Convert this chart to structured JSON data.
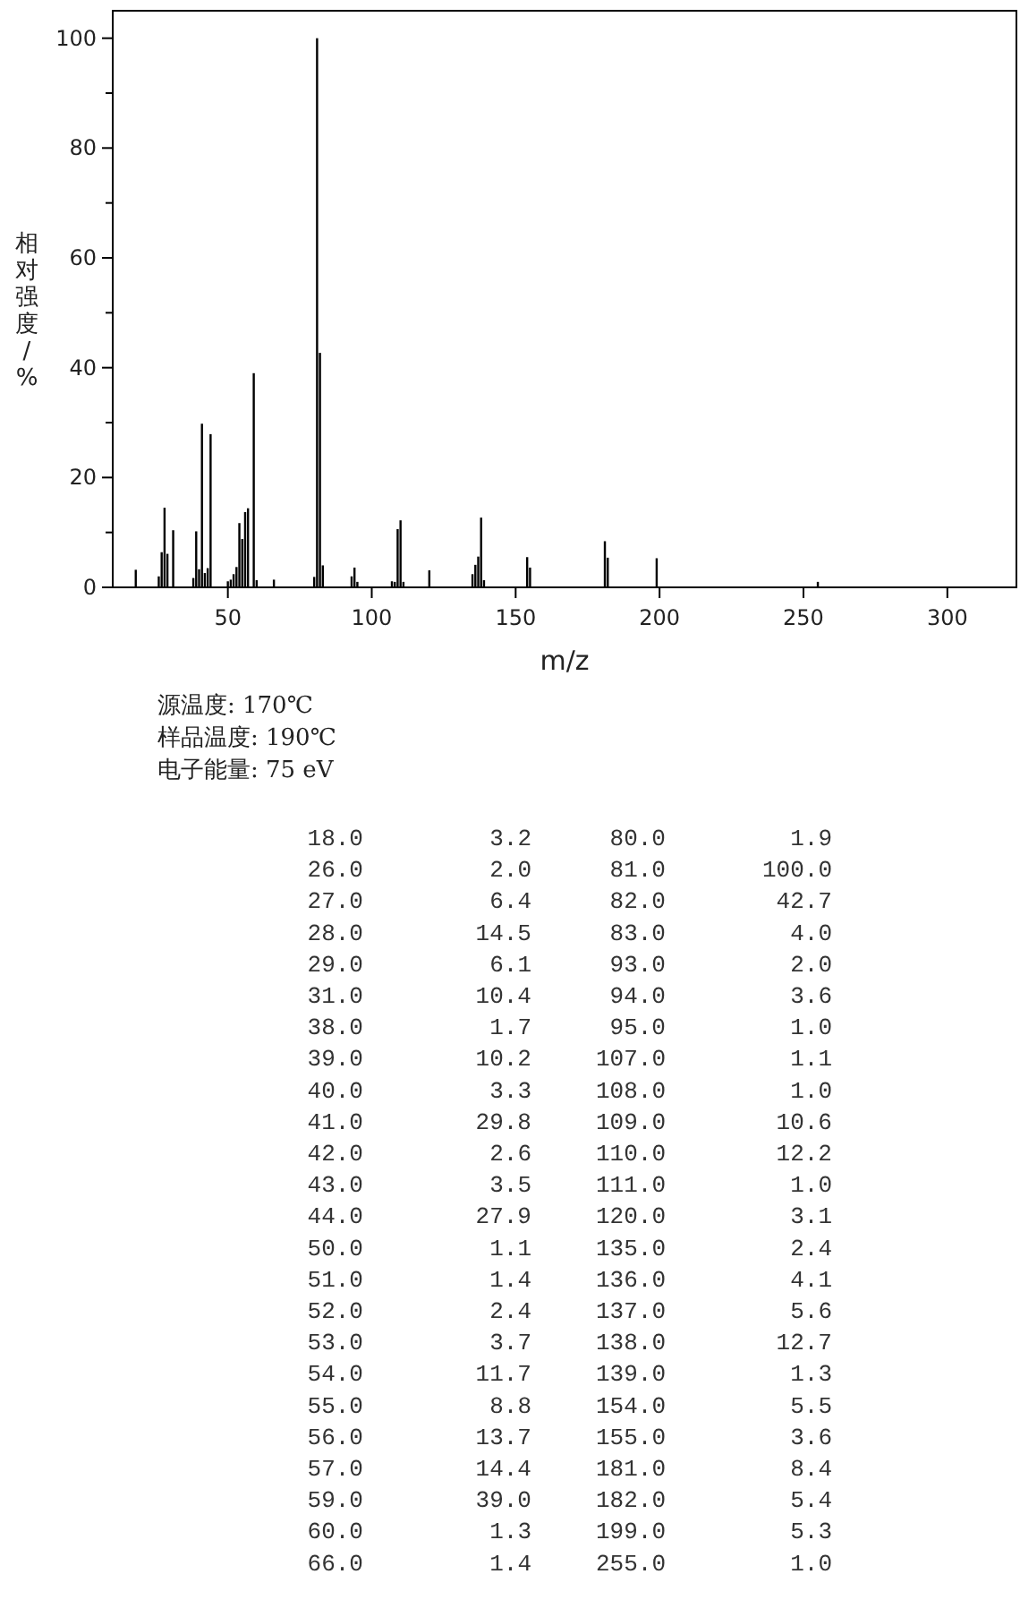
{
  "chart_data": {
    "type": "bar",
    "xlabel": "m/z",
    "ylabel": "相对强度/%",
    "annotations": [
      "源温度: 170℃",
      "样品温度: 190℃",
      "电子能量: 75 eV",
      "18.0",
      "3.2",
      "80.0",
      "1.9",
      "26.0",
      "2.0",
      "81.0",
      "100.0",
      "27.0",
      "6.4",
      "82.0",
      "42.7",
      "28.0",
      "14.5",
      "83.0",
      "4.0",
      "29.0",
      "6.1",
      "93.0",
      "2.0",
      "31.0",
      "10.4",
      "94.0",
      "3.6",
      "38.0",
      "1.7",
      "95.0",
      "1.0",
      "39.0",
      "10.2",
      "107.0",
      "1.1",
      "40.0",
      "3.3",
      "108.0",
      "1.0",
      "41.0",
      "29.8",
      "109.0",
      "10.6",
      "42.0",
      "2.6",
      "110.0",
      "12.2",
      "43.0",
      "3.5",
      "111.0",
      "1.0",
      "44.0",
      "27.9",
      "120.0",
      "3.1",
      "50.0",
      "1.1",
      "135.0",
      "2.4",
      "51.0",
      "1.4",
      "136.0",
      "4.1",
      "52.0",
      "2.4",
      "137.0",
      "5.6",
      "53.0",
      "3.7",
      "138.0",
      "12.7",
      "54.0",
      "11.7",
      "139.0",
      "1.3",
      "55.0",
      "8.8",
      "154.0",
      "5.5",
      "56.0",
      "13.7",
      "155.0",
      "3.6",
      "57.0",
      "14.4",
      "181.0",
      "8.4",
      "59.0",
      "39.0",
      "182.0",
      "5.4",
      "60.0",
      "1.3",
      "199.0",
      "5.3",
      "66.0",
      "1.4",
      "255.0",
      "1.0"
    ],
    "x": [
      18,
      26,
      27,
      28,
      29,
      31,
      38,
      39,
      40,
      41,
      42,
      43,
      44,
      50,
      51,
      52,
      53,
      54,
      55,
      56,
      57,
      59,
      60,
      66,
      80,
      81,
      82,
      83,
      93,
      94,
      95,
      107,
      108,
      109,
      110,
      111,
      120,
      135,
      136,
      137,
      138,
      139,
      154,
      155,
      181,
      182,
      199,
      255
    ],
    "values": [
      3.2,
      2.0,
      6.4,
      14.5,
      6.1,
      10.4,
      1.7,
      10.2,
      3.3,
      29.8,
      2.6,
      3.5,
      27.9,
      1.1,
      1.4,
      2.4,
      3.7,
      11.7,
      8.8,
      13.7,
      14.4,
      39.0,
      1.3,
      1.4,
      1.9,
      100.0,
      42.7,
      4.0,
      2.0,
      3.6,
      1.0,
      1.1,
      1.0,
      10.6,
      12.2,
      1.0,
      3.1,
      2.4,
      4.1,
      5.6,
      12.7,
      1.3,
      5.5,
      3.6,
      8.4,
      5.4,
      5.3,
      1.0
    ],
    "color": "#000000",
    "xlim": [
      10,
      324
    ],
    "ylim": [
      0,
      105
    ],
    "xticks": [
      50,
      100,
      150,
      200,
      250,
      300
    ],
    "yticks": [
      0,
      {
        "value": 10,
        "label": null
      },
      20,
      {
        "value": 30,
        "label": null
      },
      40,
      {
        "value": 50,
        "label": null
      },
      60,
      {
        "value": 70,
        "label": null
      },
      80,
      {
        "value": 90,
        "label": null
      },
      100
    ]
  }
}
